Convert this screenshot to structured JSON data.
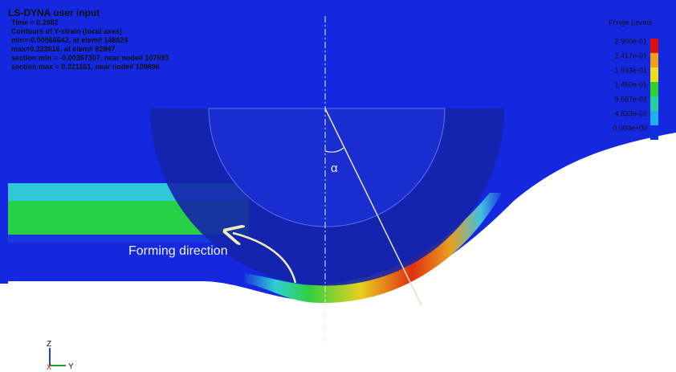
{
  "header": {
    "title": "LS-DYNA user input",
    "lines": [
      "Time =     0.2982",
      "Contours of Y-strain (local axes)",
      "min=-0.00566642, at elem# 148824",
      "max=0.323616, at elem# 82847",
      "section min = -0.00367307, near node# 107993",
      "section max = 0.321161, near node# 109696"
    ]
  },
  "legend": {
    "title": "Fringe Levels",
    "levels": [
      "2.900e-01",
      "2.417e-01",
      "1.933e-01",
      "1.450e-01",
      "9.667e-02",
      "4.833e-02",
      "0.000e+00"
    ]
  },
  "annotations": {
    "forming": "Forming direction",
    "angle": "α"
  },
  "triad": {
    "z": "Z",
    "x": "X",
    "y": "Y"
  }
}
